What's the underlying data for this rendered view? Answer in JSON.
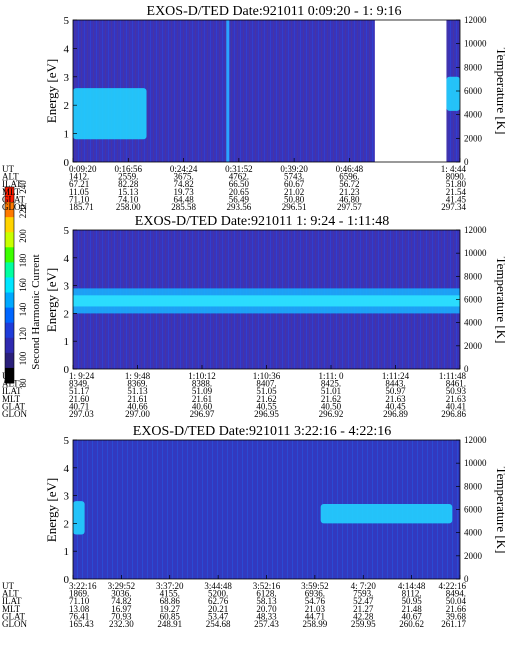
{
  "colorbar": {
    "label": "Second Harmonic Current",
    "ticks": [
      "240",
      "220",
      "200",
      "180",
      "160",
      "140",
      "120",
      "100",
      "80"
    ],
    "colors": [
      "#ff1c00",
      "#ff7a00",
      "#ffd400",
      "#c8ff00",
      "#3cff00",
      "#00ffa0",
      "#00e6ff",
      "#00a8ff",
      "#0066ff",
      "#1f3cd9",
      "#2f2ab0",
      "#2a1f7a",
      "#000000"
    ]
  },
  "chart_data": [
    {
      "type": "heatmap",
      "title": "EXOS-D/TED   Date:921011   0:09:20 -  1: 9:16",
      "ylabel": "Energy [eV]",
      "ylabel_right": "Temperature [K]",
      "ylim": [
        0,
        5
      ],
      "yticks": [
        "0",
        "1",
        "2",
        "3",
        "4",
        "5"
      ],
      "ylim_right": [
        0,
        12000
      ],
      "yticks_right": [
        "0",
        "2000",
        "4000",
        "6000",
        "8000",
        "10000",
        "12000"
      ],
      "orbit_rows": [
        {
          "label": "UT",
          "values": [
            "0:09:20",
            "0:16:56",
            "0:24:24",
            "0:31:52",
            "0:39:20",
            "0:46:48",
            "",
            "1: 4:44"
          ]
        },
        {
          "label": "ALT",
          "values": [
            "1412.",
            "2559.",
            "3675.",
            "4762.",
            "5743.",
            "6596.",
            "",
            "8090."
          ]
        },
        {
          "label": "ILAT",
          "values": [
            "67.21",
            "82.28",
            "74.82",
            "66.50",
            "60.67",
            "56.72",
            "",
            "51.80"
          ]
        },
        {
          "label": "MLT",
          "values": [
            "11.05",
            "15.13",
            "19.73",
            "20.65",
            "21.02",
            "21.23",
            "",
            "21.54"
          ]
        },
        {
          "label": "GLAT",
          "values": [
            "71.10",
            "74.10",
            "64.48",
            "56.49",
            "50.80",
            "46.80",
            "",
            "41.45"
          ]
        },
        {
          "label": "GLON",
          "values": [
            "185.71",
            "258.00",
            "285.58",
            "293.56",
            "296.51",
            "297.57",
            "",
            "297.34"
          ]
        }
      ],
      "features": [
        {
          "kind": "enhancement",
          "from_frac": 0.0,
          "to_frac": 0.19,
          "energy_ev": [
            0.8,
            2.6
          ],
          "color": "#22d2ff"
        },
        {
          "kind": "spike",
          "at_frac": 0.4,
          "color": "#2aa3ff"
        },
        {
          "kind": "data_gap",
          "from_frac": 0.78,
          "to_frac": 0.965
        },
        {
          "kind": "enhancement",
          "from_frac": 0.965,
          "to_frac": 1.0,
          "energy_ev": [
            1.8,
            3.0
          ],
          "color": "#22d2ff"
        }
      ]
    },
    {
      "type": "heatmap",
      "title": "EXOS-D/TED   Date:921011   1: 9:24 - 1:11:48",
      "ylabel": "Energy [eV]",
      "ylabel_right": "Temperature [K]",
      "ylim": [
        0,
        5
      ],
      "yticks": [
        "0",
        "1",
        "2",
        "3",
        "4",
        "5"
      ],
      "ylim_right": [
        0,
        12000
      ],
      "yticks_right": [
        "0",
        "2000",
        "4000",
        "6000",
        "8000",
        "10000",
        "12000"
      ],
      "orbit_rows": [
        {
          "label": "UT",
          "values": [
            "1: 9:24",
            "1: 9:48",
            "1:10:12",
            "1:10:36",
            "1:11: 0",
            "1:11:24",
            "1:11:48"
          ]
        },
        {
          "label": "ALT",
          "values": [
            "8349.",
            "8369.",
            "8388.",
            "8407.",
            "8425.",
            "8443.",
            "8461."
          ]
        },
        {
          "label": "ILAT",
          "values": [
            "51.17",
            "51.13",
            "51.09",
            "51.05",
            "51.01",
            "50.97",
            "50.93"
          ]
        },
        {
          "label": "MLT",
          "values": [
            "21.60",
            "21.61",
            "21.61",
            "21.62",
            "21.62",
            "21.63",
            "21.63"
          ]
        },
        {
          "label": "GLAT",
          "values": [
            "40.71",
            "40.66",
            "40.60",
            "40.55",
            "40.50",
            "40.45",
            "40.41"
          ]
        },
        {
          "label": "GLON",
          "values": [
            "297.03",
            "297.00",
            "296.97",
            "296.95",
            "296.92",
            "296.89",
            "296.86"
          ]
        }
      ],
      "features": [
        {
          "kind": "band",
          "energy_ev": [
            2.0,
            2.9
          ],
          "color": "#19b4ff"
        },
        {
          "kind": "band",
          "energy_ev": [
            2.25,
            2.65
          ],
          "color": "#2ee6ff"
        }
      ]
    },
    {
      "type": "heatmap",
      "title": "EXOS-D/TED   Date:921011   3:22:16 - 4:22:16",
      "ylabel": "Energy [eV]",
      "ylabel_right": "Temperature [K]",
      "ylim": [
        0,
        5
      ],
      "yticks": [
        "0",
        "1",
        "2",
        "3",
        "4",
        "5"
      ],
      "ylim_right": [
        0,
        12000
      ],
      "yticks_right": [
        "0",
        "2000",
        "4000",
        "6000",
        "8000",
        "10000",
        "12000"
      ],
      "orbit_rows": [
        {
          "label": "UT",
          "values": [
            "3:22:16",
            "3:29:52",
            "3:37:20",
            "3:44:48",
            "3:52:16",
            "3:59:52",
            "4: 7:20",
            "4:14:48",
            "4:22:16"
          ]
        },
        {
          "label": "ALT",
          "values": [
            "1869.",
            "3036.",
            "4155.",
            "5200.",
            "6128.",
            "6936.",
            "7593.",
            "8112.",
            "8494."
          ]
        },
        {
          "label": "ILAT",
          "values": [
            "71.10",
            "74.82",
            "68.86",
            "62.76",
            "58.13",
            "54.76",
            "52.47",
            "50.95",
            "50.04"
          ]
        },
        {
          "label": "MLT",
          "values": [
            "13.08",
            "16.97",
            "19.27",
            "20.21",
            "20.70",
            "21.03",
            "21.27",
            "21.48",
            "21.66"
          ]
        },
        {
          "label": "GLAT",
          "values": [
            "76.41",
            "70.93",
            "60.85",
            "53.47",
            "48.33",
            "44.71",
            "42.28",
            "40.67",
            "39.68"
          ]
        },
        {
          "label": "GLON",
          "values": [
            "165.43",
            "232.30",
            "248.91",
            "254.68",
            "257.43",
            "258.99",
            "259.95",
            "260.62",
            "261.17"
          ]
        }
      ],
      "features": [
        {
          "kind": "enhancement",
          "from_frac": 0.0,
          "to_frac": 0.03,
          "energy_ev": [
            1.6,
            2.8
          ],
          "color": "#22d2ff"
        },
        {
          "kind": "enhancement",
          "from_frac": 0.64,
          "to_frac": 0.98,
          "energy_ev": [
            2.0,
            2.7
          ],
          "color": "#22d2ff"
        }
      ]
    }
  ]
}
